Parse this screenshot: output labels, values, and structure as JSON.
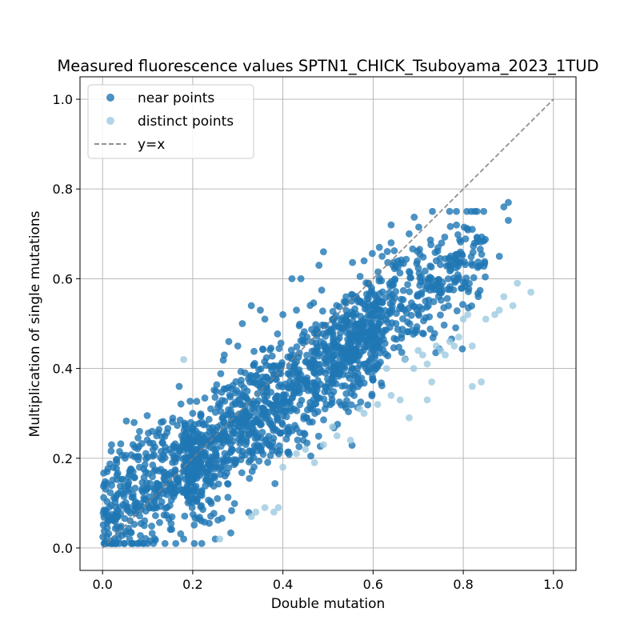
{
  "chart_data": {
    "type": "scatter",
    "title": "Measured fluorescence values SPTN1_CHICK_Tsuboyama_2023_1TUD",
    "xlabel": "Double mutation",
    "ylabel": "Multiplication of single mutations",
    "xlim": [
      -0.05,
      1.05
    ],
    "ylim": [
      -0.05,
      1.05
    ],
    "xticks": [
      "0.0",
      "0.2",
      "0.4",
      "0.6",
      "0.8",
      "1.0"
    ],
    "yticks": [
      "0.0",
      "0.2",
      "0.4",
      "0.6",
      "0.8",
      "1.0"
    ],
    "grid": true,
    "legend_position": "top-left",
    "series": [
      {
        "name": "near points",
        "color": "#1f77b4",
        "opacity": 0.8,
        "marker": "circle",
        "n_points": 1850,
        "trend": "clustered along y ≈ 0.75x + 0.04 with spread ±0.07",
        "points": [
          [
            0.02,
            0.23
          ],
          [
            0.05,
            0.2
          ],
          [
            0.01,
            0.17
          ],
          [
            0.17,
            0.36
          ],
          [
            0.33,
            0.54
          ],
          [
            0.35,
            0.53
          ],
          [
            0.42,
            0.6
          ],
          [
            0.44,
            0.6
          ],
          [
            0.49,
            0.66
          ],
          [
            0.48,
            0.63
          ],
          [
            0.54,
            0.56
          ],
          [
            0.58,
            0.64
          ],
          [
            0.62,
            0.65
          ],
          [
            0.64,
            0.72
          ],
          [
            0.68,
            0.7
          ],
          [
            0.64,
            0.68
          ],
          [
            0.82,
            0.71
          ],
          [
            0.89,
            0.76
          ],
          [
            0.9,
            0.77
          ],
          [
            0.9,
            0.73
          ],
          [
            0.88,
            0.65
          ],
          [
            0.82,
            0.63
          ],
          [
            0.74,
            0.64
          ],
          [
            0.27,
            0.43
          ],
          [
            0.28,
            0.46
          ],
          [
            0.3,
            0.45
          ],
          [
            0.31,
            0.5
          ],
          [
            0.36,
            0.51
          ],
          [
            0.4,
            0.52
          ],
          [
            0.43,
            0.53
          ],
          [
            0.13,
            0.28
          ],
          [
            0.11,
            0.26
          ],
          [
            0.12,
            0.25
          ],
          [
            0.2,
            0.3
          ],
          [
            0.24,
            0.31
          ],
          [
            0.06,
            0.02
          ],
          [
            0.1,
            0.01
          ],
          [
            0.18,
            0.02
          ],
          [
            0.22,
            0.01
          ],
          [
            0.25,
            0.02
          ]
        ]
      },
      {
        "name": "distinct points",
        "color": "#9ecae1",
        "opacity": 0.8,
        "marker": "circle",
        "points": [
          [
            0.18,
            0.42
          ],
          [
            0.26,
            0.02
          ],
          [
            0.33,
            0.07
          ],
          [
            0.34,
            0.08
          ],
          [
            0.36,
            0.09
          ],
          [
            0.38,
            0.08
          ],
          [
            0.39,
            0.09
          ],
          [
            0.4,
            0.18
          ],
          [
            0.43,
            0.21
          ],
          [
            0.45,
            0.22
          ],
          [
            0.47,
            0.19
          ],
          [
            0.49,
            0.23
          ],
          [
            0.51,
            0.27
          ],
          [
            0.52,
            0.25
          ],
          [
            0.55,
            0.24
          ],
          [
            0.57,
            0.31
          ],
          [
            0.58,
            0.3
          ],
          [
            0.61,
            0.32
          ],
          [
            0.63,
            0.4
          ],
          [
            0.64,
            0.34
          ],
          [
            0.66,
            0.33
          ],
          [
            0.67,
            0.42
          ],
          [
            0.68,
            0.29
          ],
          [
            0.69,
            0.4
          ],
          [
            0.7,
            0.44
          ],
          [
            0.71,
            0.43
          ],
          [
            0.72,
            0.41
          ],
          [
            0.72,
            0.33
          ],
          [
            0.73,
            0.37
          ],
          [
            0.74,
            0.45
          ],
          [
            0.75,
            0.44
          ],
          [
            0.76,
            0.43
          ],
          [
            0.77,
            0.46
          ],
          [
            0.78,
            0.45
          ],
          [
            0.79,
            0.47
          ],
          [
            0.8,
            0.51
          ],
          [
            0.81,
            0.52
          ],
          [
            0.82,
            0.45
          ],
          [
            0.82,
            0.36
          ],
          [
            0.84,
            0.37
          ],
          [
            0.85,
            0.51
          ],
          [
            0.87,
            0.52
          ],
          [
            0.88,
            0.53
          ],
          [
            0.89,
            0.56
          ],
          [
            0.91,
            0.54
          ],
          [
            0.92,
            0.59
          ],
          [
            0.95,
            0.57
          ]
        ]
      },
      {
        "name": "y=x",
        "color": "#7f7f7f",
        "type": "line",
        "style": "dashed",
        "x": [
          0.0,
          1.0
        ],
        "y": [
          0.0,
          1.0
        ]
      }
    ]
  }
}
